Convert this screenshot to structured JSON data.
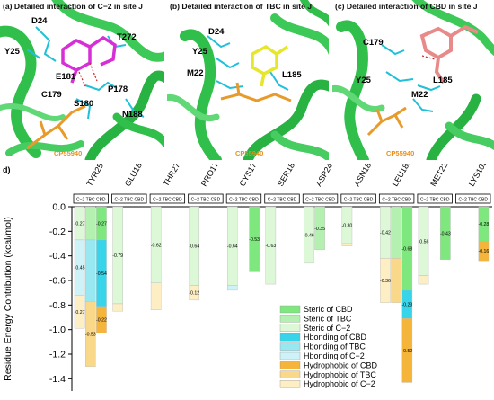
{
  "panels": [
    {
      "title": "(a) Detailed interaction of C−2 in site J",
      "residues": [
        "D24",
        "Y25",
        "E181",
        "T272",
        "C179",
        "P178",
        "S180",
        "N188"
      ],
      "ligand": "CP55940"
    },
    {
      "title": "(b) Detailed interaction of TBC in site J",
      "residues": [
        "D24",
        "Y25",
        "M22",
        "L185"
      ],
      "ligand": "CP55940"
    },
    {
      "title": "(c) Detailed interaction of CBD in site J",
      "residues": [
        "C179",
        "Y25",
        "L185",
        "M22"
      ],
      "ligand": "CP55940"
    }
  ],
  "chart_panel_label": "d)",
  "chart_data": {
    "type": "bar",
    "stacked": true,
    "title": "",
    "ylabel": "Residue Energy Contribution (kcal/mol)",
    "ylim": [
      -1.5,
      0.0
    ],
    "yticks": [
      0.0,
      -0.2,
      -0.4,
      -0.6,
      -0.8,
      -1.0,
      -1.2,
      -1.4
    ],
    "ytick_labels": [
      "0.0",
      "-0.2",
      "-0.4",
      "-0.6",
      "-0.8",
      "-1.0",
      "-1.2",
      "-1.4"
    ],
    "categories": [
      "TYR25",
      "GLU181",
      "THR272",
      "PRO178",
      "CYS179",
      "SER180",
      "ASP24",
      "ASN188",
      "LEU185",
      "MET22",
      "LYS103"
    ],
    "subgroup_header": "C−2 TBC CBD",
    "ligands": [
      "C−2",
      "TBC",
      "CBD"
    ],
    "legend": [
      {
        "name": "Steric of CBD",
        "color": "#7ee87e"
      },
      {
        "name": "Steric of TBC",
        "color": "#b4f0b0"
      },
      {
        "name": "Steric of C−2",
        "color": "#dcf8d6"
      },
      {
        "name": "Hbonding of CBD",
        "color": "#38d4ea"
      },
      {
        "name": "Hbonding of TBC",
        "color": "#98e8f2"
      },
      {
        "name": "Hbonding of C−2",
        "color": "#cdf2f7"
      },
      {
        "name": "Hydrophobic of CBD",
        "color": "#f5b43a"
      },
      {
        "name": "Hydrophobic of TBC",
        "color": "#fad88a"
      },
      {
        "name": "Hydrophobic of C−2",
        "color": "#fdeec4"
      }
    ],
    "stacks": [
      [
        {
          "v": -0.27,
          "c": "#dcf8d6",
          "l": "-0.27"
        },
        {
          "v": -0.45,
          "c": "#cdf2f7",
          "l": "-0.45"
        },
        {
          "v": -0.27,
          "c": "#fdeec4",
          "l": "-0.27"
        }
      ],
      [
        {
          "v": -0.27,
          "c": "#b4f0b0",
          "l": ""
        },
        {
          "v": -0.5,
          "c": "#98e8f2",
          "l": ""
        },
        {
          "v": -0.53,
          "c": "#fad88a",
          "l": "-0.53"
        }
      ],
      [
        {
          "v": -0.27,
          "c": "#7ee87e",
          "l": "-0.27"
        },
        {
          "v": -0.54,
          "c": "#38d4ea",
          "l": "-0.54"
        },
        {
          "v": -0.22,
          "c": "#f5b43a",
          "l": "-0.22"
        }
      ],
      [
        {
          "v": -0.79,
          "c": "#dcf8d6",
          "l": "-0.79"
        },
        {
          "v": -0.06,
          "c": "#fdeec4",
          "l": ""
        }
      ],
      [
        {
          "v": -0.62,
          "c": "#dcf8d6",
          "l": "-0.62"
        },
        {
          "v": -0.22,
          "c": "#fdeec4",
          "l": ""
        }
      ],
      [
        {
          "v": -0.64,
          "c": "#dcf8d6",
          "l": "-0.64"
        },
        {
          "v": -0.12,
          "c": "#fdeec4",
          "l": "-0.12"
        }
      ],
      [
        {
          "v": -0.64,
          "c": "#dcf8d6",
          "l": "-0.64"
        },
        {
          "v": -0.04,
          "c": "#cdf2f7",
          "l": ""
        }
      ],
      [
        {
          "v": -0.53,
          "c": "#7ee87e",
          "l": "-0.53"
        }
      ],
      [
        {
          "v": -0.63,
          "c": "#dcf8d6",
          "l": "-0.63"
        }
      ],
      [
        {
          "v": -0.46,
          "c": "#dcf8d6",
          "l": "-0.46"
        }
      ],
      [
        {
          "v": -0.35,
          "c": "#b4f0b0",
          "l": "-0.35"
        }
      ],
      [
        {
          "v": -0.3,
          "c": "#dcf8d6",
          "l": "-0.30"
        },
        {
          "v": -0.02,
          "c": "#fdeec4",
          "l": ""
        }
      ],
      [
        {
          "v": -0.42,
          "c": "#dcf8d6",
          "l": "-0.42"
        },
        {
          "v": -0.36,
          "c": "#fdeec4",
          "l": "-0.36"
        }
      ],
      [
        {
          "v": -0.42,
          "c": "#b4f0b0",
          "l": ""
        },
        {
          "v": -0.36,
          "c": "#fad88a",
          "l": ""
        }
      ],
      [
        {
          "v": -0.68,
          "c": "#7ee87e",
          "l": "-0.68"
        },
        {
          "v": -0.23,
          "c": "#38d4ea",
          "l": "-0.23"
        },
        {
          "v": -0.52,
          "c": "#f5b43a",
          "l": "-0.52"
        }
      ],
      [
        {
          "v": -0.56,
          "c": "#dcf8d6",
          "l": "-0.56"
        },
        {
          "v": -0.07,
          "c": "#fdeec4",
          "l": ""
        }
      ],
      [
        {
          "v": -0.43,
          "c": "#7ee87e",
          "l": "-0.43"
        }
      ],
      [
        {
          "v": -0.28,
          "c": "#7ee87e",
          "l": "-0.28"
        },
        {
          "v": -0.16,
          "c": "#f5b43a",
          "l": "-0.16"
        }
      ]
    ]
  }
}
